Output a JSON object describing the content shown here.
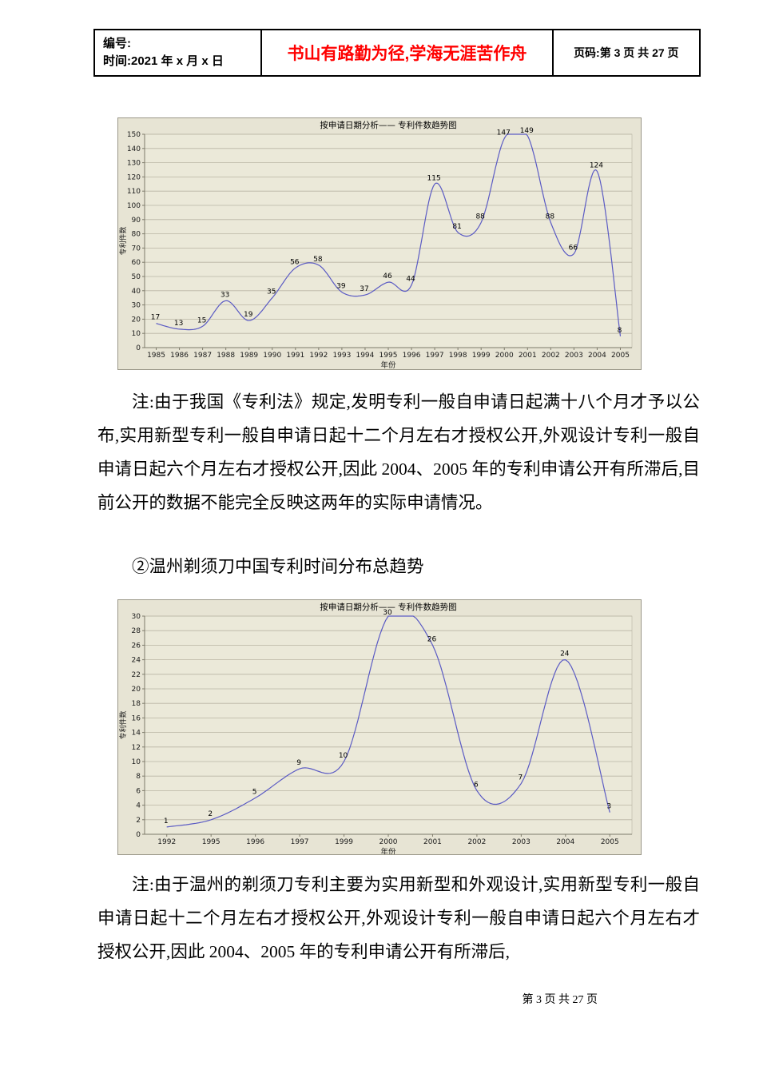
{
  "header": {
    "number_label": "编号:",
    "time_label": "时间:2021 年 x 月 x 日",
    "motto": "书山有路勤为径,学海无涯苦作舟",
    "page_label": "页码:第 3 页 共 27 页"
  },
  "notes": {
    "note1": "注:由于我国《专利法》规定,发明专利一般自申请日起满十八个月才予以公布,实用新型专利一般自申请日起十二个月左右才授权公开,外观设计专利一般自申请日起六个月左右才授权公开,因此 2004、2005 年的专利申请公开有所滞后,目前公开的数据不能完全反映这两年的实际申请情况。",
    "heading2": "②温州剃须刀中国专利时间分布总趋势",
    "note2": "注:由于温州的剃须刀专利主要为实用新型和外观设计,实用新型专利一般自申请日起十二个月左右才授权公开,外观设计专利一般自申请日起六个月左右才授权公开,因此 2004、2005 年的专利申请公开有所滞后,"
  },
  "footer": {
    "page_text": "第 3 页 共 27 页"
  },
  "chart_data": [
    {
      "type": "line",
      "title": "按申请日期分析—— 专利件数趋势图",
      "xlabel": "年份",
      "ylabel": "专利件数",
      "categories": [
        "1985",
        "1986",
        "1987",
        "1988",
        "1989",
        "1990",
        "1991",
        "1992",
        "1993",
        "1994",
        "1995",
        "1996",
        "1997",
        "1998",
        "1999",
        "2000",
        "2001",
        "2002",
        "2003",
        "2004",
        "2005"
      ],
      "values": [
        17,
        13,
        15,
        33,
        19,
        35,
        56,
        58,
        39,
        37,
        46,
        44,
        115,
        81,
        88,
        147,
        149,
        88,
        66,
        124,
        8
      ],
      "ylim": [
        0,
        150
      ],
      "ytick": 10,
      "grid": true,
      "legend": "none",
      "line_color": "#5b5bc4",
      "bg_outer": "#e7e4d4",
      "bg_plot": "#ebe9d9",
      "grid_color": "#b9b5a4"
    },
    {
      "type": "line",
      "title": "按申请日期分析—— 专利件数趋势图",
      "xlabel": "年份",
      "ylabel": "专利件数",
      "categories": [
        "1992",
        "1995",
        "1996",
        "1997",
        "1999",
        "2000",
        "2001",
        "2002",
        "2003",
        "2004",
        "2005"
      ],
      "values": [
        1,
        2,
        5,
        9,
        10,
        30,
        26,
        6,
        7,
        24,
        3
      ],
      "ylim": [
        0,
        30
      ],
      "ytick": 2,
      "grid": true,
      "legend": "none",
      "line_color": "#5b5bc4",
      "bg_outer": "#e7e4d4",
      "bg_plot": "#ebe9d9",
      "grid_color": "#b9b5a4"
    }
  ]
}
